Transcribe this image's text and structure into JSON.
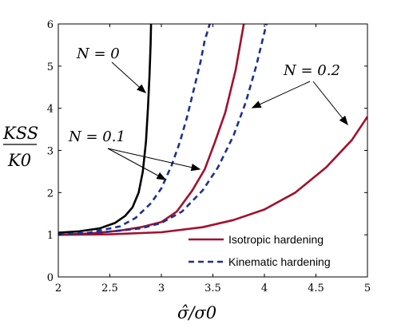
{
  "chart_data": {
    "type": "line",
    "xlabel": "σ̂/σ0",
    "ylabel_top": "KSS",
    "ylabel_bottom": "K0",
    "xlim": [
      2,
      5
    ],
    "ylim": [
      0,
      6
    ],
    "xticks": [
      "2",
      "2.5",
      "3",
      "3.5",
      "4",
      "4.5",
      "5"
    ],
    "yticks": [
      "0",
      "1",
      "2",
      "3",
      "4",
      "5",
      "6"
    ],
    "grid": false,
    "legend_position": "bottom-right",
    "legend": [
      {
        "label": "Isotropic hardening",
        "style": "solid",
        "color": "#a3102e"
      },
      {
        "label": "Kinematic hardening",
        "style": "dashed",
        "color": "#1f2f8c"
      }
    ],
    "annotations": [
      {
        "label": "N = 0"
      },
      {
        "label": "N = 0.1"
      },
      {
        "label": "N = 0.2"
      }
    ],
    "series": [
      {
        "N": 0,
        "kind": "both",
        "color": "#000000",
        "style": "solid",
        "x": [
          2.0,
          2.2,
          2.4,
          2.55,
          2.65,
          2.72,
          2.78,
          2.82,
          2.85,
          2.87,
          2.885,
          2.895,
          2.9
        ],
        "y": [
          1.05,
          1.08,
          1.15,
          1.28,
          1.45,
          1.65,
          2.0,
          2.5,
          3.2,
          4.0,
          4.8,
          5.5,
          6.0
        ]
      },
      {
        "N": 0.1,
        "kind": "isotropic",
        "color": "#a3102e",
        "style": "solid",
        "x": [
          2.0,
          2.3,
          2.6,
          2.8,
          3.0,
          3.15,
          3.3,
          3.42,
          3.52,
          3.62,
          3.72,
          3.8
        ],
        "y": [
          1.0,
          1.03,
          1.1,
          1.18,
          1.3,
          1.55,
          2.05,
          2.55,
          3.2,
          3.9,
          4.9,
          6.0
        ]
      },
      {
        "N": 0.1,
        "kind": "kinematic",
        "color": "#1f2f8c",
        "style": "dashed",
        "x": [
          2.0,
          2.3,
          2.6,
          2.75,
          2.9,
          3.0,
          3.1,
          3.18,
          3.25,
          3.32,
          3.38,
          3.42,
          3.47
        ],
        "y": [
          1.0,
          1.05,
          1.2,
          1.4,
          1.75,
          2.1,
          2.65,
          3.2,
          3.8,
          4.5,
          5.1,
          5.6,
          6.0
        ]
      },
      {
        "N": 0.2,
        "kind": "isotropic",
        "color": "#a3102e",
        "style": "solid",
        "x": [
          2.0,
          2.5,
          3.0,
          3.4,
          3.7,
          4.0,
          4.3,
          4.6,
          4.85,
          5.0
        ],
        "y": [
          1.0,
          1.01,
          1.06,
          1.18,
          1.35,
          1.6,
          2.0,
          2.6,
          3.25,
          3.8
        ]
      },
      {
        "N": 0.2,
        "kind": "kinematic",
        "color": "#1f2f8c",
        "style": "dashed",
        "x": [
          2.0,
          2.4,
          2.8,
          3.0,
          3.2,
          3.4,
          3.55,
          3.7,
          3.82,
          3.92,
          4.02
        ],
        "y": [
          1.0,
          1.05,
          1.15,
          1.28,
          1.55,
          2.05,
          2.6,
          3.35,
          4.15,
          5.0,
          6.0
        ]
      }
    ]
  }
}
